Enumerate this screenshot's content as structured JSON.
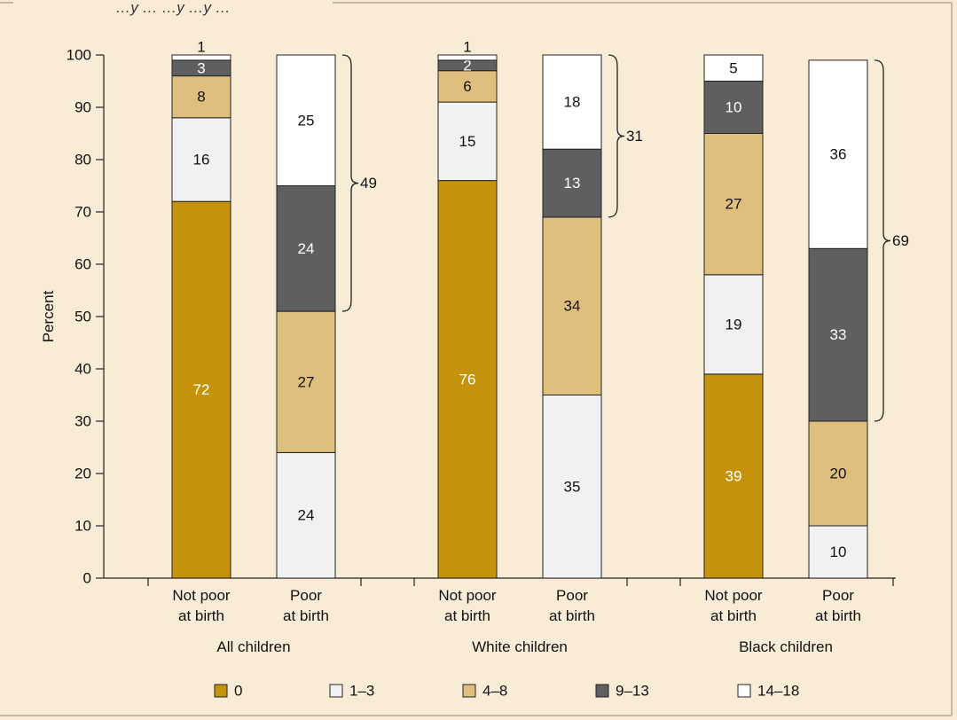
{
  "header": {
    "partial_text": "…y … …y …y …"
  },
  "chart_data": {
    "type": "bar",
    "stacked": true,
    "title": "",
    "xlabel": "",
    "ylabel": "Percent",
    "ylim": [
      0,
      100
    ],
    "yticks": [
      0,
      10,
      20,
      30,
      40,
      50,
      60,
      70,
      80,
      90,
      100
    ],
    "grid": false,
    "legend_position": "bottom",
    "groups": [
      {
        "label": "All children",
        "bars": [
          {
            "label": [
              "Not poor",
              "at birth"
            ],
            "values": [
              72,
              16,
              8,
              3,
              1
            ]
          },
          {
            "label": [
              "Poor",
              "at birth"
            ],
            "values": [
              0,
              24,
              27,
              24,
              25
            ],
            "brace_value": 49
          }
        ]
      },
      {
        "label": "White children",
        "bars": [
          {
            "label": [
              "Not poor",
              "at birth"
            ],
            "values": [
              76,
              15,
              6,
              2,
              1
            ]
          },
          {
            "label": [
              "Poor",
              "at birth"
            ],
            "values": [
              0,
              35,
              34,
              13,
              18
            ],
            "brace_value": 31
          }
        ]
      },
      {
        "label": "Black children",
        "bars": [
          {
            "label": [
              "Not poor",
              "at birth"
            ],
            "values": [
              39,
              19,
              27,
              10,
              5
            ]
          },
          {
            "label": [
              "Poor",
              "at birth"
            ],
            "values": [
              0,
              10,
              20,
              33,
              36
            ],
            "brace_value": 69
          }
        ]
      }
    ],
    "series": [
      {
        "name": "0",
        "color": "#c4920b",
        "text_color": "#ffffff"
      },
      {
        "name": "1–3",
        "color": "#f1f1f3",
        "text_color": "#111111"
      },
      {
        "name": "4–8",
        "color": "#dfbf7d",
        "text_color": "#111111"
      },
      {
        "name": "9–13",
        "color": "#5f5f61",
        "text_color": "#ffffff"
      },
      {
        "name": "14–18",
        "color": "#ffffff",
        "text_color": "#111111"
      }
    ]
  }
}
